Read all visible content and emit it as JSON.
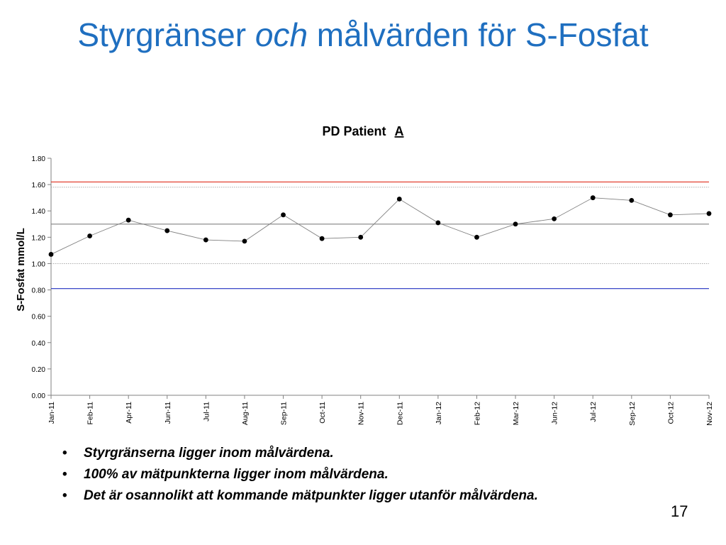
{
  "slide": {
    "title_part1": "Styrgränser ",
    "title_italic": "och",
    "title_part2": " målvärden för S-Fosfat",
    "bullets": [
      "Styrgränserna ligger inom målvärdena.",
      "100% av mätpunkterna ligger inom målvärdena.",
      "Det är osannolikt att kommande mätpunkter ligger utanför målvärdena."
    ],
    "page_number": "17"
  },
  "chart_data": {
    "type": "line",
    "title": "PD Patient",
    "title_underlined": "A",
    "xlabel": "",
    "ylabel": "S-Fosfat mmol/L",
    "ylim": [
      0,
      1.8
    ],
    "yticks": [
      "0.00",
      "0.20",
      "0.40",
      "0.60",
      "0.80",
      "1.00",
      "1.20",
      "1.40",
      "1.60",
      "1.80"
    ],
    "categories": [
      "Jan-11",
      "Feb-11",
      "Apr-11",
      "Jun-11",
      "Jul-11",
      "Aug-11",
      "Sep-11",
      "Oct-11",
      "Nov-11",
      "Dec-11",
      "Jan-12",
      "Feb-12",
      "Mar-12",
      "Jun-12",
      "Jul-12",
      "Sep-12",
      "Oct-12",
      "Nov-12"
    ],
    "series": [
      {
        "name": "",
        "values": [
          1.07,
          1.21,
          1.33,
          1.25,
          1.18,
          1.17,
          1.37,
          1.19,
          1.2,
          1.49,
          1.31,
          1.2,
          1.3,
          1.34,
          1.5,
          1.48,
          1.37,
          1.38
        ]
      }
    ],
    "reference_lines": [
      {
        "value": 1.62,
        "color": "#e03020",
        "style": "solid"
      },
      {
        "value": 1.58,
        "color": "#a0a0a0",
        "style": "dotted"
      },
      {
        "value": 1.3,
        "color": "#808080",
        "style": "solid"
      },
      {
        "value": 1.0,
        "color": "#a0a0a0",
        "style": "dotted"
      },
      {
        "value": 0.81,
        "color": "#2030c0",
        "style": "solid"
      }
    ],
    "grid": false,
    "legend": "none",
    "line_color": "#808080",
    "marker_color": "#000000"
  }
}
